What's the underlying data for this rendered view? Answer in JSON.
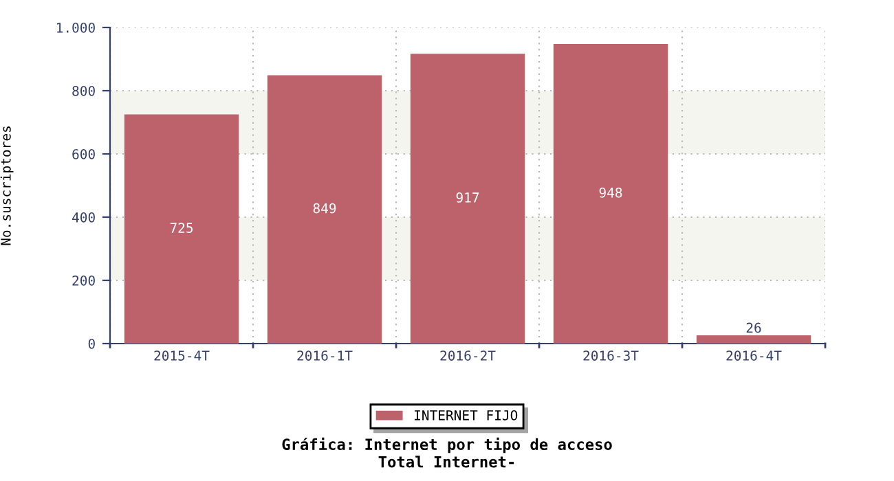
{
  "chart_data": {
    "type": "bar",
    "title": "Gráfica: Internet por tipo de acceso",
    "subtitle": "Total Internet-",
    "ylabel": "No.suscriptores",
    "categories": [
      "2015-4T",
      "2016-1T",
      "2016-2T",
      "2016-3T",
      "2016-4T"
    ],
    "series": [
      {
        "name": "INTERNET FIJO",
        "color": "#bd616a",
        "values": [
          725,
          849,
          917,
          948,
          26
        ]
      }
    ],
    "ylim": [
      0,
      1000
    ],
    "yticks": [
      0,
      200,
      400,
      600,
      {
        "value": 800,
        "label": "800"
      },
      {
        "value": 1000,
        "label": "1.000"
      }
    ],
    "bands": [
      {
        "axis": "y",
        "from": 200,
        "to": 400,
        "color": "#f5f5f0"
      },
      {
        "axis": "y",
        "from": 600,
        "to": 800,
        "color": "#f5f5f0"
      }
    ],
    "grid": true,
    "legend": "bottom",
    "data_labels": true
  }
}
